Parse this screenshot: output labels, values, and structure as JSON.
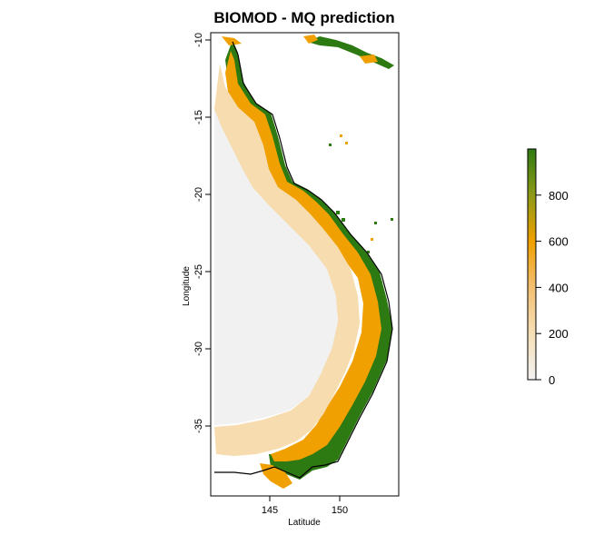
{
  "title": "BIOMOD - MQ prediction",
  "colors": {
    "low": "#f2f2f2",
    "mid": "#f0a000",
    "high": "#2d7a12",
    "coast": "#000000"
  },
  "map": {
    "type": "raster-map",
    "lon_range": [
      141,
      154
    ],
    "lat_range": [
      -39.5,
      -9.5
    ],
    "xlabel": "Latitude",
    "ylabel": "Longitude",
    "x_ticks": [
      {
        "value": 145,
        "label": "145"
      },
      {
        "value": 150,
        "label": "150"
      }
    ],
    "y_ticks": [
      {
        "value": -10,
        "label": "-10"
      },
      {
        "value": -15,
        "label": "-15"
      },
      {
        "value": -20,
        "label": "-20"
      },
      {
        "value": -25,
        "label": "-25"
      },
      {
        "value": -30,
        "label": "-30"
      },
      {
        "value": -35,
        "label": "-35"
      }
    ]
  },
  "legend": {
    "range": [
      0,
      1000
    ],
    "ticks": [
      {
        "value": 0,
        "label": "0"
      },
      {
        "value": 200,
        "label": "200"
      },
      {
        "value": 400,
        "label": "400"
      },
      {
        "value": 600,
        "label": "600"
      },
      {
        "value": 800,
        "label": "800"
      }
    ]
  }
}
